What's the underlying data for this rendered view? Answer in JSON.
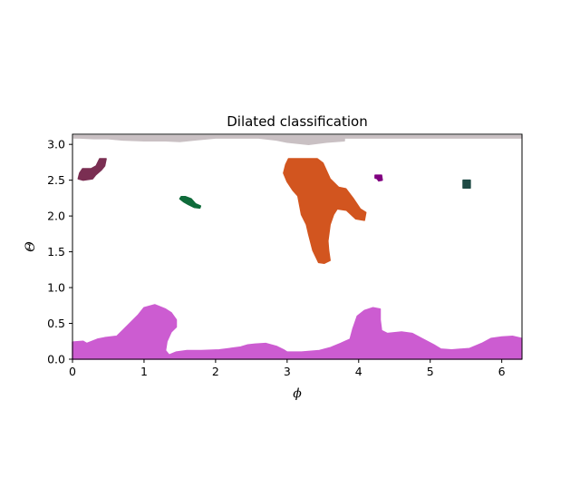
{
  "chart_data": {
    "type": "area",
    "title": "Dilated classification",
    "xlabel": "ϕ",
    "ylabel": "Θ",
    "xlim": [
      0,
      6.283
    ],
    "ylim": [
      0,
      3.14159
    ],
    "xticks": [
      0,
      1,
      2,
      3,
      4,
      5,
      6
    ],
    "yticks": [
      0.0,
      0.5,
      1.0,
      1.5,
      2.0,
      2.5,
      3.0
    ],
    "xtick_labels": [
      "0",
      "1",
      "2",
      "3",
      "4",
      "5",
      "6"
    ],
    "ytick_labels": [
      "0.0",
      "0.5",
      "1.0",
      "1.5",
      "2.0",
      "2.5",
      "3.0"
    ],
    "grid": false,
    "regions": [
      {
        "color": "#c9c0c3",
        "points": [
          [
            0.02,
            3.12
          ],
          [
            0.6,
            3.12
          ],
          [
            1.2,
            3.12
          ],
          [
            2.6,
            3.12
          ],
          [
            3.9,
            3.12
          ],
          [
            6.28,
            3.12
          ],
          [
            6.28,
            3.09
          ],
          [
            3.8,
            3.09
          ],
          [
            3.8,
            3.05
          ],
          [
            3.55,
            3.03
          ],
          [
            3.3,
            3.0
          ],
          [
            3.0,
            3.03
          ],
          [
            2.85,
            3.06
          ],
          [
            2.6,
            3.09
          ],
          [
            2.0,
            3.09
          ],
          [
            1.7,
            3.06
          ],
          [
            1.5,
            3.04
          ],
          [
            1.3,
            3.05
          ],
          [
            1.0,
            3.05
          ],
          [
            0.7,
            3.06
          ],
          [
            0.5,
            3.08
          ],
          [
            0.3,
            3.08
          ],
          [
            0.1,
            3.09
          ],
          [
            0.02,
            3.09
          ]
        ]
      },
      {
        "color": "#7a2e52",
        "points": [
          [
            0.08,
            2.52
          ],
          [
            0.1,
            2.6
          ],
          [
            0.14,
            2.66
          ],
          [
            0.26,
            2.66
          ],
          [
            0.33,
            2.7
          ],
          [
            0.38,
            2.8
          ],
          [
            0.47,
            2.8
          ],
          [
            0.45,
            2.7
          ],
          [
            0.4,
            2.64
          ],
          [
            0.32,
            2.57
          ],
          [
            0.28,
            2.52
          ],
          [
            0.15,
            2.5
          ]
        ]
      },
      {
        "color": "#0f6b3a",
        "points": [
          [
            1.5,
            2.24
          ],
          [
            1.52,
            2.27
          ],
          [
            1.58,
            2.27
          ],
          [
            1.66,
            2.24
          ],
          [
            1.72,
            2.17
          ],
          [
            1.79,
            2.14
          ],
          [
            1.78,
            2.11
          ],
          [
            1.7,
            2.12
          ],
          [
            1.62,
            2.16
          ],
          [
            1.55,
            2.2
          ]
        ]
      },
      {
        "color": "#d2551f",
        "points": [
          [
            2.95,
            2.6
          ],
          [
            2.98,
            2.72
          ],
          [
            3.02,
            2.8
          ],
          [
            3.42,
            2.8
          ],
          [
            3.5,
            2.74
          ],
          [
            3.6,
            2.52
          ],
          [
            3.72,
            2.4
          ],
          [
            3.82,
            2.38
          ],
          [
            3.92,
            2.25
          ],
          [
            4.02,
            2.1
          ],
          [
            4.1,
            2.05
          ],
          [
            4.08,
            1.94
          ],
          [
            3.96,
            1.96
          ],
          [
            3.83,
            2.08
          ],
          [
            3.7,
            2.1
          ],
          [
            3.65,
            2.02
          ],
          [
            3.6,
            1.88
          ],
          [
            3.57,
            1.65
          ],
          [
            3.58,
            1.52
          ],
          [
            3.6,
            1.38
          ],
          [
            3.52,
            1.34
          ],
          [
            3.44,
            1.35
          ],
          [
            3.36,
            1.52
          ],
          [
            3.3,
            1.75
          ],
          [
            3.27,
            1.88
          ],
          [
            3.2,
            2.02
          ],
          [
            3.17,
            2.18
          ],
          [
            3.15,
            2.28
          ],
          [
            3.08,
            2.36
          ],
          [
            3.0,
            2.48
          ]
        ]
      },
      {
        "color": "#800080",
        "points": [
          [
            4.23,
            2.53
          ],
          [
            4.23,
            2.57
          ],
          [
            4.32,
            2.57
          ],
          [
            4.33,
            2.5
          ],
          [
            4.28,
            2.49
          ],
          [
            4.26,
            2.52
          ]
        ]
      },
      {
        "color": "#1f4a44",
        "points": [
          [
            5.46,
            2.39
          ],
          [
            5.46,
            2.5
          ],
          [
            5.56,
            2.5
          ],
          [
            5.56,
            2.39
          ]
        ]
      },
      {
        "color": "#cc5cd1",
        "points": [
          [
            0,
            0
          ],
          [
            6.28,
            0
          ],
          [
            6.28,
            0.29
          ],
          [
            6.15,
            0.32
          ],
          [
            6.0,
            0.31
          ],
          [
            5.85,
            0.29
          ],
          [
            5.72,
            0.22
          ],
          [
            5.55,
            0.15
          ],
          [
            5.3,
            0.13
          ],
          [
            5.15,
            0.14
          ],
          [
            5.05,
            0.2
          ],
          [
            4.9,
            0.28
          ],
          [
            4.75,
            0.36
          ],
          [
            4.6,
            0.38
          ],
          [
            4.4,
            0.36
          ],
          [
            4.32,
            0.4
          ],
          [
            4.3,
            0.55
          ],
          [
            4.3,
            0.7
          ],
          [
            4.2,
            0.72
          ],
          [
            4.08,
            0.68
          ],
          [
            3.98,
            0.6
          ],
          [
            3.92,
            0.43
          ],
          [
            3.88,
            0.28
          ],
          [
            3.75,
            0.22
          ],
          [
            3.6,
            0.16
          ],
          [
            3.45,
            0.12
          ],
          [
            3.2,
            0.1
          ],
          [
            3.0,
            0.1
          ],
          [
            2.95,
            0.13
          ],
          [
            2.85,
            0.18
          ],
          [
            2.7,
            0.22
          ],
          [
            2.55,
            0.21
          ],
          [
            2.45,
            0.2
          ],
          [
            2.35,
            0.17
          ],
          [
            2.2,
            0.15
          ],
          [
            2.05,
            0.13
          ],
          [
            1.8,
            0.12
          ],
          [
            1.6,
            0.12
          ],
          [
            1.45,
            0.1
          ],
          [
            1.35,
            0.06
          ],
          [
            1.3,
            0.12
          ],
          [
            1.32,
            0.25
          ],
          [
            1.38,
            0.38
          ],
          [
            1.45,
            0.45
          ],
          [
            1.45,
            0.55
          ],
          [
            1.38,
            0.65
          ],
          [
            1.3,
            0.7
          ],
          [
            1.15,
            0.76
          ],
          [
            1.0,
            0.72
          ],
          [
            0.92,
            0.62
          ],
          [
            0.8,
            0.5
          ],
          [
            0.7,
            0.4
          ],
          [
            0.62,
            0.32
          ],
          [
            0.45,
            0.3
          ],
          [
            0.35,
            0.28
          ],
          [
            0.2,
            0.22
          ],
          [
            0.15,
            0.25
          ],
          [
            0,
            0.24
          ]
        ]
      }
    ]
  }
}
